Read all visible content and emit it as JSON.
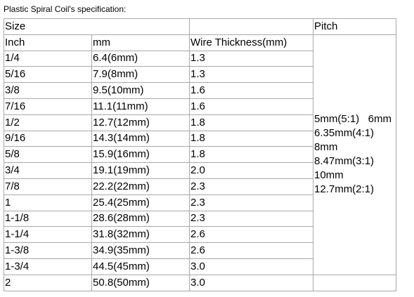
{
  "caption": "Plastic Spiral Coil's specification:",
  "table": {
    "header": [
      "Size",
      "Pitch"
    ],
    "columns": [
      "Inch",
      "mm",
      "Wire Thickness(mm)"
    ],
    "rows": [
      [
        "1/4",
        "6.4(6mm)",
        "1.3"
      ],
      [
        "5/16",
        "7.9(8mm)",
        "1.3"
      ],
      [
        "3/8",
        "9.5(10mm)",
        "1.6"
      ],
      [
        "7/16",
        "11.1(11mm)",
        "1.6"
      ],
      [
        "1/2",
        "12.7(12mm)",
        "1.8"
      ],
      [
        "9/16",
        "14.3(14mm)",
        "1.8"
      ],
      [
        "5/8",
        "15.9(16mm)",
        "1.8"
      ],
      [
        "3/4",
        "19.1(19mm)",
        "2.0"
      ],
      [
        "7/8",
        "22.2(22mm)",
        "2.3"
      ],
      [
        "1",
        "25.4(25mm)",
        "2.3"
      ],
      [
        "1-1/8",
        "28.6(28mm)",
        "2.3"
      ],
      [
        "1-1/4",
        "31.8(32mm)",
        "2.6"
      ],
      [
        "1-3/8",
        "34.9(35mm)",
        "2.6"
      ],
      [
        "1-3/4",
        "44.5(45mm)",
        "3.0"
      ],
      [
        "2",
        "50.8(50mm)",
        "3.0"
      ]
    ],
    "pitch": [
      "5mm(5:1)   6mm",
      "6.35mm(4:1)",
      "8mm",
      "8.47mm(3:1)",
      "10mm",
      "12.7mm(2:1)"
    ]
  }
}
